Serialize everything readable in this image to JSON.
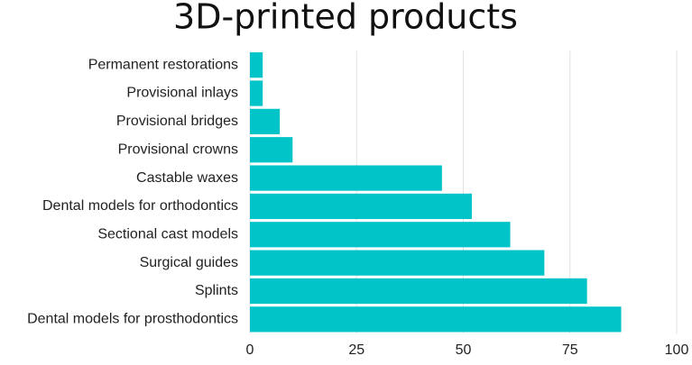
{
  "chart_data": {
    "type": "bar",
    "orientation": "horizontal",
    "title": "3D-printed products",
    "categories": [
      "Permanent restorations",
      "Provisional inlays",
      "Provisional bridges",
      "Provisional crowns",
      "Castable waxes",
      "Dental models for orthodontics",
      "Sectional cast models",
      "Surgical guides",
      "Splints",
      "Dental models for prosthodontics"
    ],
    "values": [
      3,
      3,
      7,
      10,
      45,
      52,
      61,
      69,
      79,
      87
    ],
    "color": "#00c4c8",
    "xlim": [
      0,
      100
    ],
    "xticks": [
      0,
      25,
      50,
      75,
      100
    ],
    "grid": true
  }
}
